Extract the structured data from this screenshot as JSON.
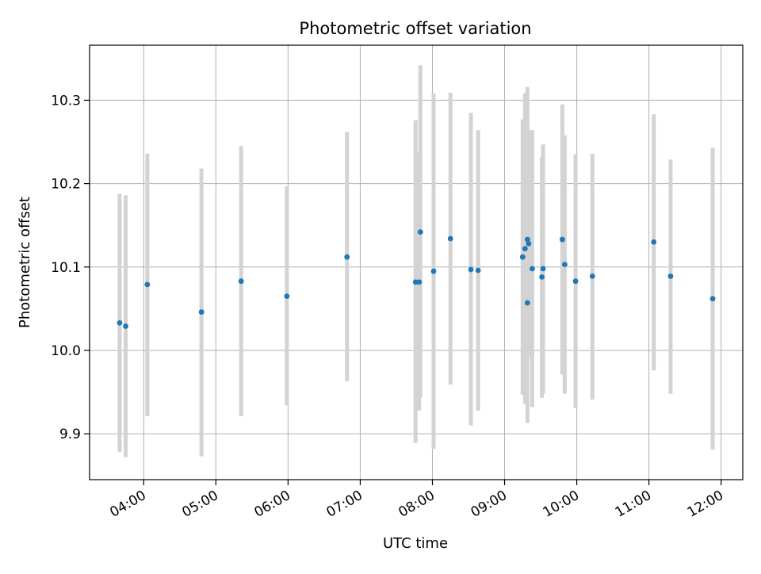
{
  "chart_data": {
    "type": "scatter",
    "title": "Photometric offset variation",
    "xlabel": "UTC time",
    "ylabel": "Photometric offset",
    "x_is_time": true,
    "xlim": [
      "03:15",
      "12:18"
    ],
    "ylim": [
      9.845,
      10.366
    ],
    "grid": true,
    "xticks": [
      "04:00",
      "05:00",
      "06:00",
      "07:00",
      "08:00",
      "09:00",
      "10:00",
      "11:00",
      "12:00"
    ],
    "yticks": [
      "9.9",
      "10.0",
      "10.1",
      "10.2",
      "10.3"
    ],
    "colors": {
      "point": "#1f77b4",
      "errorbar": "#d3d3d3",
      "grid": "#b0b0b0",
      "axis": "#000000"
    },
    "series": [
      {
        "points": [
          {
            "x": "03:40",
            "y": 10.033,
            "yerr_low": 9.878,
            "yerr_high": 10.188
          },
          {
            "x": "03:45",
            "y": 10.029,
            "yerr_low": 9.872,
            "yerr_high": 10.186
          },
          {
            "x": "04:03",
            "y": 10.079,
            "yerr_low": 9.921,
            "yerr_high": 10.236
          },
          {
            "x": "04:48",
            "y": 10.046,
            "yerr_low": 9.873,
            "yerr_high": 10.218
          },
          {
            "x": "05:21",
            "y": 10.083,
            "yerr_low": 9.921,
            "yerr_high": 10.245
          },
          {
            "x": "05:59",
            "y": 10.065,
            "yerr_low": 9.934,
            "yerr_high": 10.197
          },
          {
            "x": "06:49",
            "y": 10.112,
            "yerr_low": 9.963,
            "yerr_high": 10.262
          },
          {
            "x": "07:46",
            "y": 10.082,
            "yerr_low": 9.889,
            "yerr_high": 10.276
          },
          {
            "x": "07:49",
            "y": 10.082,
            "yerr_low": 9.928,
            "yerr_high": 10.237
          },
          {
            "x": "07:50",
            "y": 10.142,
            "yerr_low": 9.943,
            "yerr_high": 10.342
          },
          {
            "x": "08:01",
            "y": 10.095,
            "yerr_low": 9.882,
            "yerr_high": 10.308
          },
          {
            "x": "08:15",
            "y": 10.134,
            "yerr_low": 9.959,
            "yerr_high": 10.309
          },
          {
            "x": "08:32",
            "y": 10.097,
            "yerr_low": 9.91,
            "yerr_high": 10.285
          },
          {
            "x": "08:38",
            "y": 10.096,
            "yerr_low": 9.928,
            "yerr_high": 10.264
          },
          {
            "x": "09:15",
            "y": 10.112,
            "yerr_low": 9.947,
            "yerr_high": 10.277
          },
          {
            "x": "09:17",
            "y": 10.122,
            "yerr_low": 9.936,
            "yerr_high": 10.308
          },
          {
            "x": "09:19",
            "y": 10.057,
            "yerr_low": 9.913,
            "yerr_high": 10.201
          },
          {
            "x": "09:19",
            "y": 10.133,
            "yerr_low": 9.95,
            "yerr_high": 10.316
          },
          {
            "x": "09:20",
            "y": 10.128,
            "yerr_low": 9.992,
            "yerr_high": 10.264
          },
          {
            "x": "09:23",
            "y": 10.098,
            "yerr_low": 9.932,
            "yerr_high": 10.264
          },
          {
            "x": "09:31",
            "y": 10.088,
            "yerr_low": 9.943,
            "yerr_high": 10.232
          },
          {
            "x": "09:32",
            "y": 10.098,
            "yerr_low": 9.948,
            "yerr_high": 10.247
          },
          {
            "x": "09:48",
            "y": 10.133,
            "yerr_low": 9.971,
            "yerr_high": 10.295
          },
          {
            "x": "09:50",
            "y": 10.103,
            "yerr_low": 9.948,
            "yerr_high": 10.258
          },
          {
            "x": "09:59",
            "y": 10.083,
            "yerr_low": 9.931,
            "yerr_high": 10.235
          },
          {
            "x": "10:13",
            "y": 10.089,
            "yerr_low": 9.941,
            "yerr_high": 10.236
          },
          {
            "x": "11:04",
            "y": 10.13,
            "yerr_low": 9.976,
            "yerr_high": 10.283
          },
          {
            "x": "11:18",
            "y": 10.089,
            "yerr_low": 9.948,
            "yerr_high": 10.229
          },
          {
            "x": "11:53",
            "y": 10.062,
            "yerr_low": 9.881,
            "yerr_high": 10.243
          }
        ]
      }
    ]
  }
}
